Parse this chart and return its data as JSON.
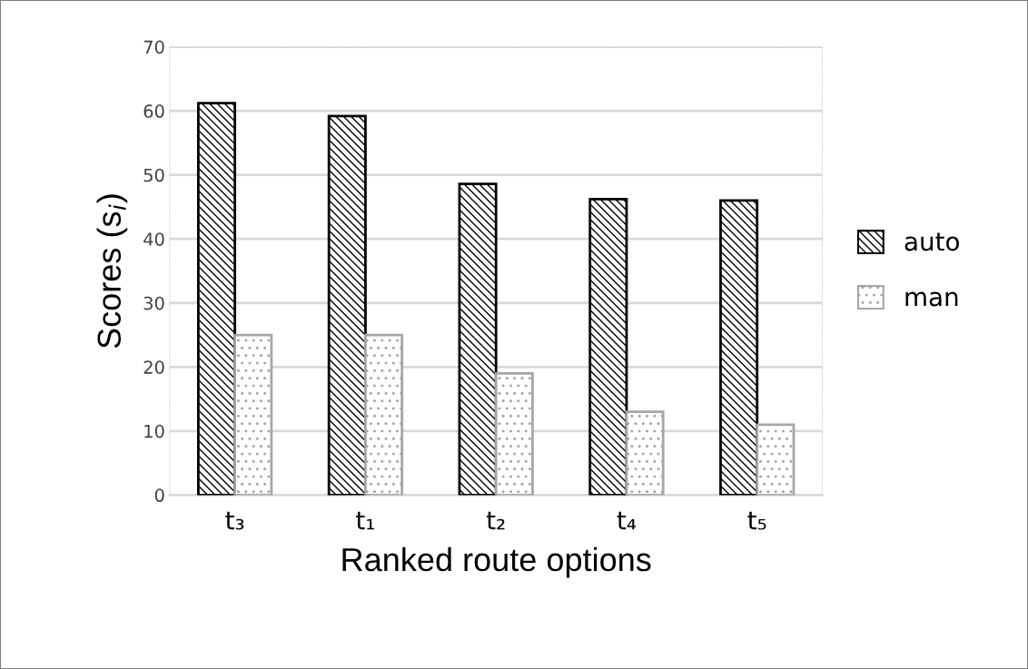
{
  "chart_data": {
    "type": "bar",
    "xlabel": "Ranked route options",
    "ylabel": "Scores (s$_{i}$)",
    "categories": [
      "t₃",
      "t₁",
      "t₂",
      "t₄",
      "t₅"
    ],
    "series": [
      {
        "name": "auto",
        "color": "#000000",
        "values": [
          61.2,
          59.2,
          48.6,
          46.2,
          46.0
        ]
      },
      {
        "name": "man",
        "color": "#a6a6a6",
        "values": [
          25,
          25,
          19,
          13,
          11
        ]
      }
    ],
    "ylim": [
      0,
      70
    ],
    "yticks": [
      0,
      10,
      20,
      30,
      40,
      50,
      60,
      70
    ],
    "grid": "y",
    "legend": "right"
  }
}
